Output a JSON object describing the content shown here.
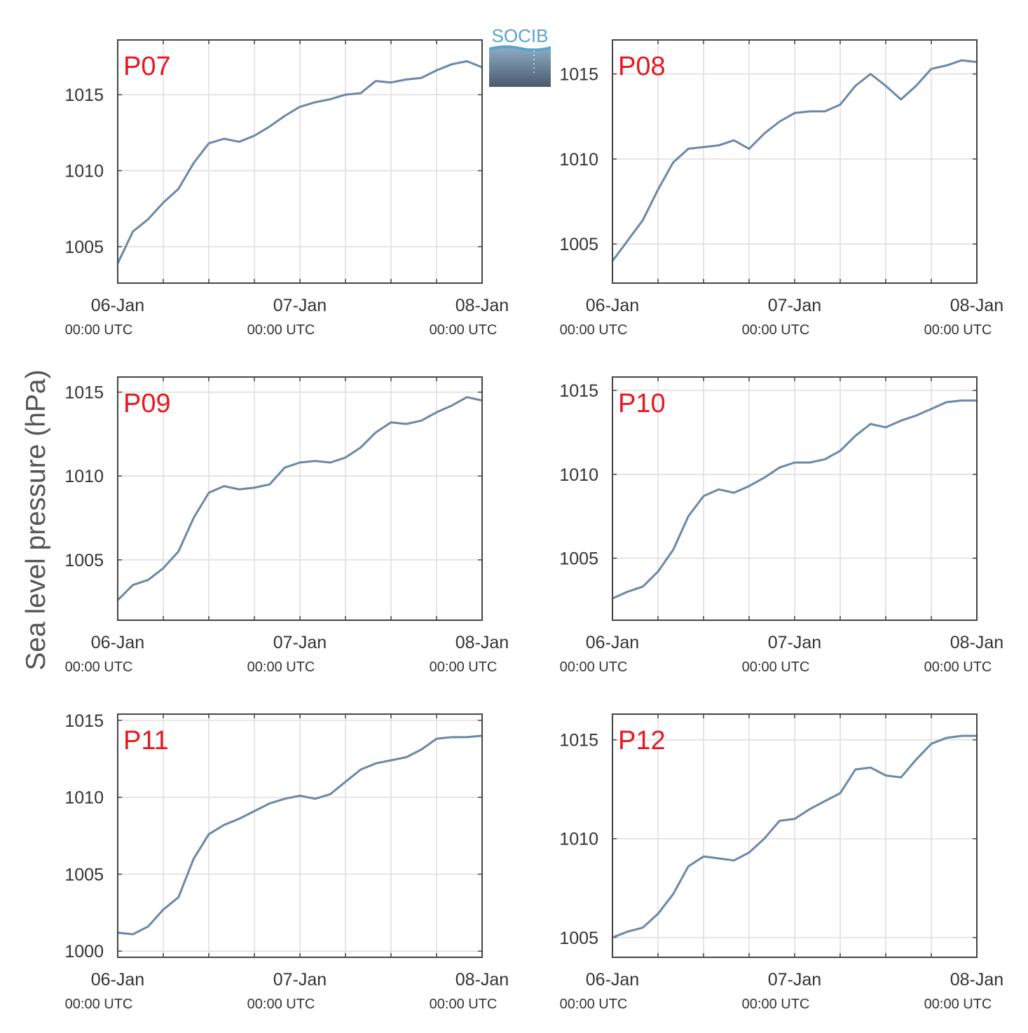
{
  "figure": {
    "ylabel": "Sea level pressure (hPa)",
    "logo_text": "SOCIB",
    "colors": {
      "line": "#6b88a8",
      "label": "#e8171f",
      "grid": "#dddddd",
      "axis": "#444444",
      "logo_light": "#5ba3c9",
      "logo_dark": "#4a5a6e"
    }
  },
  "chart_data": [
    {
      "type": "line",
      "title": "P07",
      "grid": true,
      "xlim": [
        "2022-01-06 00:00",
        "2022-01-08 00:00"
      ],
      "ylim": [
        1002.6,
        1018.6
      ],
      "yticks": [
        1005,
        1010,
        1015
      ],
      "xtick_labels": [
        "06-Jan",
        "07-Jan",
        "08-Jan"
      ],
      "xtick_sublabels": [
        "00:00 UTC",
        "00:00 UTC",
        "00:00 UTC"
      ],
      "x": [
        "2022-01-06 00:00",
        "2022-01-06 02:00",
        "2022-01-06 04:00",
        "2022-01-06 06:00",
        "2022-01-06 08:00",
        "2022-01-06 10:00",
        "2022-01-06 12:00",
        "2022-01-06 14:00",
        "2022-01-06 16:00",
        "2022-01-06 18:00",
        "2022-01-06 20:00",
        "2022-01-06 22:00",
        "2022-01-07 00:00",
        "2022-01-07 02:00",
        "2022-01-07 04:00",
        "2022-01-07 06:00",
        "2022-01-07 08:00",
        "2022-01-07 10:00",
        "2022-01-07 12:00",
        "2022-01-07 14:00",
        "2022-01-07 16:00",
        "2022-01-07 18:00",
        "2022-01-07 20:00",
        "2022-01-07 22:00",
        "2022-01-08 00:00"
      ],
      "values": [
        1003.9,
        1006.0,
        1006.8,
        1007.9,
        1008.8,
        1010.5,
        1011.8,
        1012.1,
        1011.9,
        1012.3,
        1012.9,
        1013.6,
        1014.2,
        1014.5,
        1014.7,
        1015.0,
        1015.1,
        1015.9,
        1015.8,
        1016.0,
        1016.1,
        1016.6,
        1017.0,
        1017.2,
        1016.8
      ]
    },
    {
      "type": "line",
      "title": "P08",
      "grid": true,
      "xlim": [
        "2022-01-06 00:00",
        "2022-01-08 00:00"
      ],
      "ylim": [
        1002.7,
        1017.0
      ],
      "yticks": [
        1005,
        1010,
        1015
      ],
      "xtick_labels": [
        "06-Jan",
        "07-Jan",
        "08-Jan"
      ],
      "xtick_sublabels": [
        "00:00 UTC",
        "00:00 UTC",
        "00:00 UTC"
      ],
      "x": [
        "2022-01-06 00:00",
        "2022-01-06 02:00",
        "2022-01-06 04:00",
        "2022-01-06 06:00",
        "2022-01-06 08:00",
        "2022-01-06 10:00",
        "2022-01-06 12:00",
        "2022-01-06 14:00",
        "2022-01-06 16:00",
        "2022-01-06 18:00",
        "2022-01-06 20:00",
        "2022-01-06 22:00",
        "2022-01-07 00:00",
        "2022-01-07 02:00",
        "2022-01-07 04:00",
        "2022-01-07 06:00",
        "2022-01-07 08:00",
        "2022-01-07 10:00",
        "2022-01-07 12:00",
        "2022-01-07 14:00",
        "2022-01-07 16:00",
        "2022-01-07 18:00",
        "2022-01-07 20:00",
        "2022-01-07 22:00",
        "2022-01-08 00:00"
      ],
      "values": [
        1004.0,
        1005.2,
        1006.4,
        1008.2,
        1009.8,
        1010.6,
        1010.7,
        1010.8,
        1011.1,
        1010.6,
        1011.5,
        1012.2,
        1012.7,
        1012.8,
        1012.8,
        1013.2,
        1014.3,
        1015.0,
        1014.3,
        1013.5,
        1014.3,
        1015.3,
        1015.5,
        1015.8,
        1015.7
      ]
    },
    {
      "type": "line",
      "title": "P09",
      "grid": true,
      "xlim": [
        "2022-01-06 00:00",
        "2022-01-08 00:00"
      ],
      "ylim": [
        1001.4,
        1015.9
      ],
      "yticks": [
        1005,
        1010,
        1015
      ],
      "xtick_labels": [
        "06-Jan",
        "07-Jan",
        "08-Jan"
      ],
      "xtick_sublabels": [
        "00:00 UTC",
        "00:00 UTC",
        "00:00 UTC"
      ],
      "x": [
        "2022-01-06 00:00",
        "2022-01-06 02:00",
        "2022-01-06 04:00",
        "2022-01-06 06:00",
        "2022-01-06 08:00",
        "2022-01-06 10:00",
        "2022-01-06 12:00",
        "2022-01-06 14:00",
        "2022-01-06 16:00",
        "2022-01-06 18:00",
        "2022-01-06 20:00",
        "2022-01-06 22:00",
        "2022-01-07 00:00",
        "2022-01-07 02:00",
        "2022-01-07 04:00",
        "2022-01-07 06:00",
        "2022-01-07 08:00",
        "2022-01-07 10:00",
        "2022-01-07 12:00",
        "2022-01-07 14:00",
        "2022-01-07 16:00",
        "2022-01-07 18:00",
        "2022-01-07 20:00",
        "2022-01-07 22:00",
        "2022-01-08 00:00"
      ],
      "values": [
        1002.6,
        1003.5,
        1003.8,
        1004.5,
        1005.5,
        1007.5,
        1009.0,
        1009.4,
        1009.2,
        1009.3,
        1009.5,
        1010.5,
        1010.8,
        1010.9,
        1010.8,
        1011.1,
        1011.7,
        1012.6,
        1013.2,
        1013.1,
        1013.3,
        1013.8,
        1014.2,
        1014.7,
        1014.5
      ]
    },
    {
      "type": "line",
      "title": "P10",
      "grid": true,
      "xlim": [
        "2022-01-06 00:00",
        "2022-01-08 00:00"
      ],
      "ylim": [
        1001.3,
        1015.8
      ],
      "yticks": [
        1005,
        1010,
        1015
      ],
      "xtick_labels": [
        "06-Jan",
        "07-Jan",
        "08-Jan"
      ],
      "xtick_sublabels": [
        "00:00 UTC",
        "00:00 UTC",
        "00:00 UTC"
      ],
      "x": [
        "2022-01-06 00:00",
        "2022-01-06 02:00",
        "2022-01-06 04:00",
        "2022-01-06 06:00",
        "2022-01-06 08:00",
        "2022-01-06 10:00",
        "2022-01-06 12:00",
        "2022-01-06 14:00",
        "2022-01-06 16:00",
        "2022-01-06 18:00",
        "2022-01-06 20:00",
        "2022-01-06 22:00",
        "2022-01-07 00:00",
        "2022-01-07 02:00",
        "2022-01-07 04:00",
        "2022-01-07 06:00",
        "2022-01-07 08:00",
        "2022-01-07 10:00",
        "2022-01-07 12:00",
        "2022-01-07 14:00",
        "2022-01-07 16:00",
        "2022-01-07 18:00",
        "2022-01-07 20:00",
        "2022-01-07 22:00",
        "2022-01-08 00:00"
      ],
      "values": [
        1002.6,
        1003.0,
        1003.3,
        1004.2,
        1005.5,
        1007.5,
        1008.7,
        1009.1,
        1008.9,
        1009.3,
        1009.8,
        1010.4,
        1010.7,
        1010.7,
        1010.9,
        1011.4,
        1012.3,
        1013.0,
        1012.8,
        1013.2,
        1013.5,
        1013.9,
        1014.3,
        1014.4,
        1014.4
      ]
    },
    {
      "type": "line",
      "title": "P11",
      "grid": true,
      "xlim": [
        "2022-01-06 00:00",
        "2022-01-08 00:00"
      ],
      "ylim": [
        999.6,
        1015.4
      ],
      "yticks": [
        1000,
        1005,
        1010,
        1015
      ],
      "xtick_labels": [
        "06-Jan",
        "07-Jan",
        "08-Jan"
      ],
      "xtick_sublabels": [
        "00:00 UTC",
        "00:00 UTC",
        "00:00 UTC"
      ],
      "x": [
        "2022-01-06 00:00",
        "2022-01-06 02:00",
        "2022-01-06 04:00",
        "2022-01-06 06:00",
        "2022-01-06 08:00",
        "2022-01-06 10:00",
        "2022-01-06 12:00",
        "2022-01-06 14:00",
        "2022-01-06 16:00",
        "2022-01-06 18:00",
        "2022-01-06 20:00",
        "2022-01-06 22:00",
        "2022-01-07 00:00",
        "2022-01-07 02:00",
        "2022-01-07 04:00",
        "2022-01-07 06:00",
        "2022-01-07 08:00",
        "2022-01-07 10:00",
        "2022-01-07 12:00",
        "2022-01-07 14:00",
        "2022-01-07 16:00",
        "2022-01-07 18:00",
        "2022-01-07 20:00",
        "2022-01-07 22:00",
        "2022-01-08 00:00"
      ],
      "values": [
        1001.2,
        1001.1,
        1001.6,
        1002.7,
        1003.5,
        1006.0,
        1007.6,
        1008.2,
        1008.6,
        1009.1,
        1009.6,
        1009.9,
        1010.1,
        1009.9,
        1010.2,
        1011.0,
        1011.8,
        1012.2,
        1012.4,
        1012.6,
        1013.1,
        1013.8,
        1013.9,
        1013.9,
        1014.0
      ]
    },
    {
      "type": "line",
      "title": "P12",
      "grid": true,
      "xlim": [
        "2022-01-06 00:00",
        "2022-01-08 00:00"
      ],
      "ylim": [
        1004.0,
        1016.3
      ],
      "yticks": [
        1005,
        1010,
        1015
      ],
      "xtick_labels": [
        "06-Jan",
        "07-Jan",
        "08-Jan"
      ],
      "xtick_sublabels": [
        "00:00 UTC",
        "00:00 UTC",
        "00:00 UTC"
      ],
      "x": [
        "2022-01-06 00:00",
        "2022-01-06 02:00",
        "2022-01-06 04:00",
        "2022-01-06 06:00",
        "2022-01-06 08:00",
        "2022-01-06 10:00",
        "2022-01-06 12:00",
        "2022-01-06 14:00",
        "2022-01-06 16:00",
        "2022-01-06 18:00",
        "2022-01-06 20:00",
        "2022-01-06 22:00",
        "2022-01-07 00:00",
        "2022-01-07 02:00",
        "2022-01-07 04:00",
        "2022-01-07 06:00",
        "2022-01-07 08:00",
        "2022-01-07 10:00",
        "2022-01-07 12:00",
        "2022-01-07 14:00",
        "2022-01-07 16:00",
        "2022-01-07 18:00",
        "2022-01-07 20:00",
        "2022-01-07 22:00",
        "2022-01-08 00:00"
      ],
      "values": [
        1005.0,
        1005.3,
        1005.5,
        1006.2,
        1007.2,
        1008.6,
        1009.1,
        1009.0,
        1008.9,
        1009.3,
        1010.0,
        1010.9,
        1011.0,
        1011.5,
        1011.9,
        1012.3,
        1013.5,
        1013.6,
        1013.2,
        1013.1,
        1014.0,
        1014.8,
        1015.1,
        1015.2,
        1015.2
      ]
    }
  ]
}
